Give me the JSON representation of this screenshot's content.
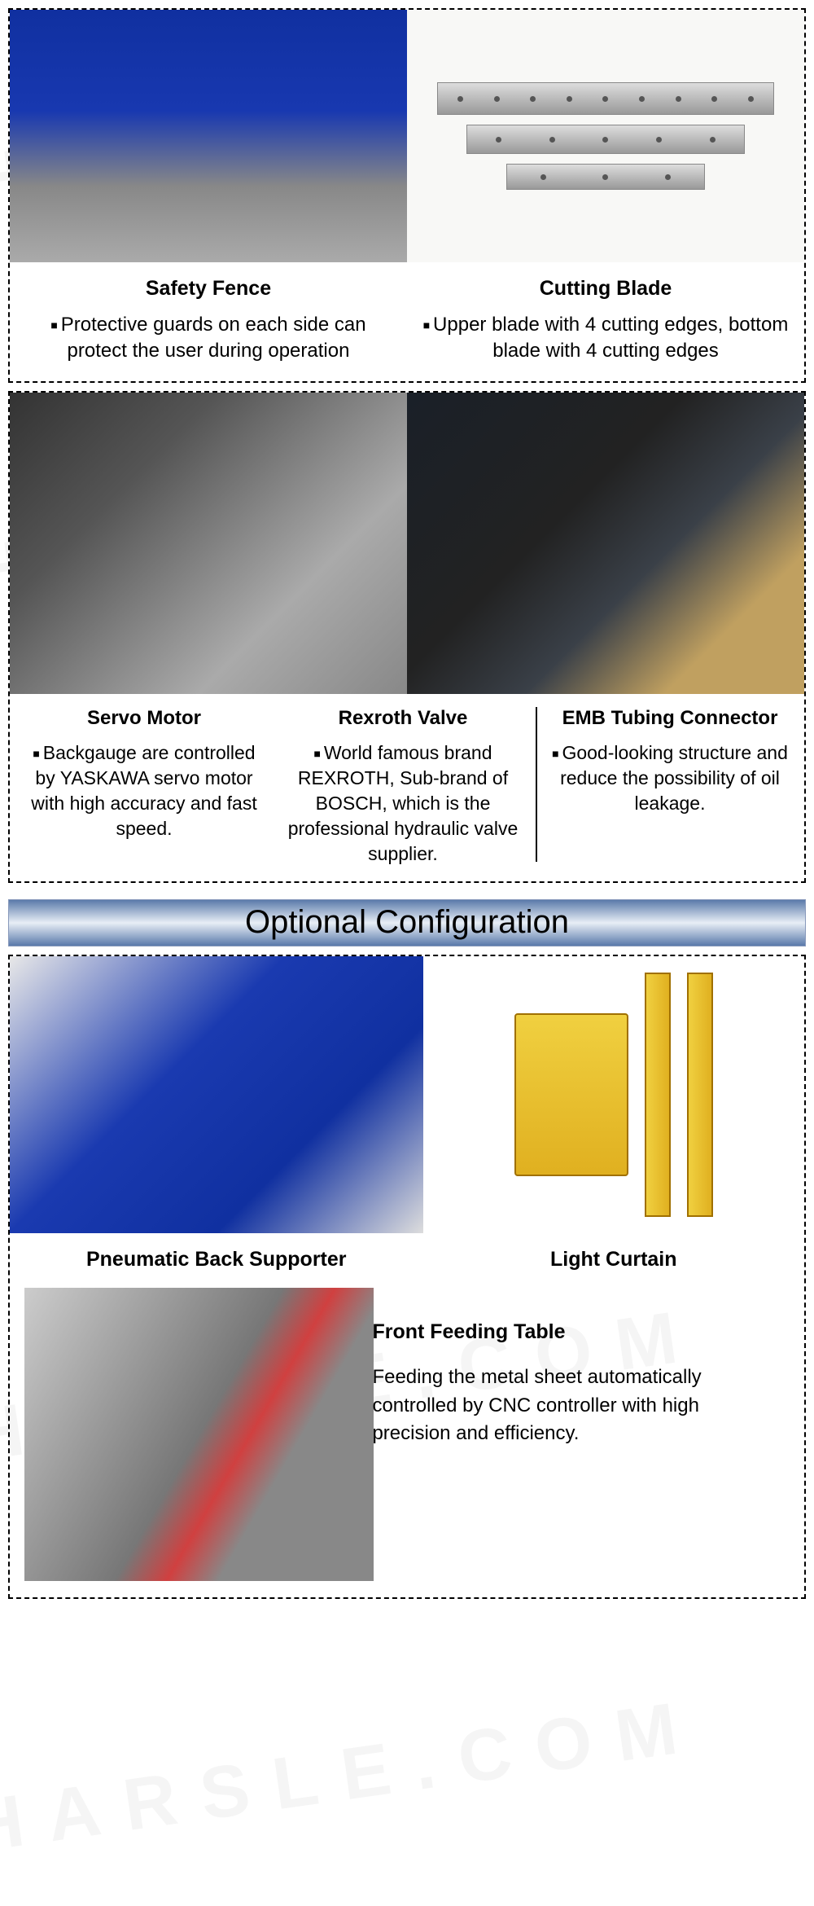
{
  "watermark_text": "HARSLE.COM",
  "section1": {
    "left": {
      "title": "Safety Fence",
      "desc": "Protective guards on each side can protect the user during operation"
    },
    "right": {
      "title": "Cutting Blade",
      "desc": "Upper blade with 4 cutting edges, bottom blade with 4 cutting edges"
    }
  },
  "section2": {
    "col1": {
      "title": "Servo Motor",
      "desc": "Backgauge are controlled by YASKAWA servo motor with high accuracy and fast speed."
    },
    "col2": {
      "title": "Rexroth Valve",
      "desc": "World famous brand REXROTH, Sub-brand of BOSCH, which is the professional hydraulic valve supplier."
    },
    "col3": {
      "title": "EMB Tubing Connector",
      "desc": "Good-looking structure and reduce the possibility of oil leakage."
    }
  },
  "optional_header": "Optional Configuration",
  "section3": {
    "left_title": "Pneumatic Back Supporter",
    "right_title": "Light Curtain",
    "bottom": {
      "title": "Front Feeding Table",
      "desc": "Feeding the metal sheet automatically controlled by CNC controller with high precision and efficiency."
    }
  },
  "colors": {
    "dash_border": "#000000",
    "header_gradient_mid": "#e8eef6",
    "header_gradient_edge": "#5a7aaa",
    "machine_blue": "#1030a0",
    "yellow": "#e0b020"
  }
}
